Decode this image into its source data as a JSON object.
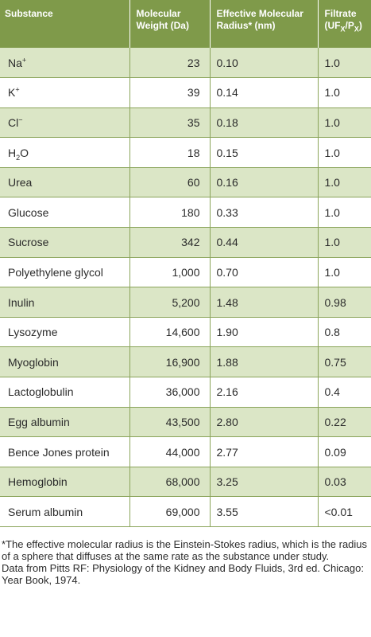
{
  "headers": {
    "substance": "Substance",
    "mw_line1": "Molecular",
    "mw_line2": "Weight (Da)",
    "radius_line1": "Effective Molecular",
    "radius_line2": "Radius* (nm)",
    "filtrate_line1": "Filtrate",
    "filtrate_line2": "(UF",
    "filtrate_sub1": "X",
    "filtrate_mid": "/P",
    "filtrate_sub2": "X",
    "filtrate_end": ")"
  },
  "rows": [
    {
      "name": "Na",
      "sup": "+",
      "sub": "",
      "tail": "",
      "mw": "23",
      "radius": "0.10",
      "filtrate": "1.0"
    },
    {
      "name": "K",
      "sup": "+",
      "sub": "",
      "tail": "",
      "mw": "39",
      "radius": "0.14",
      "filtrate": "1.0"
    },
    {
      "name": "Cl",
      "sup": "−",
      "sub": "",
      "tail": "",
      "mw": "35",
      "radius": "0.18",
      "filtrate": "1.0"
    },
    {
      "name": "H",
      "sup": "",
      "sub": "2",
      "tail": "O",
      "mw": "18",
      "radius": "0.15",
      "filtrate": "1.0"
    },
    {
      "name": "Urea",
      "sup": "",
      "sub": "",
      "tail": "",
      "mw": "60",
      "radius": "0.16",
      "filtrate": "1.0"
    },
    {
      "name": "Glucose",
      "sup": "",
      "sub": "",
      "tail": "",
      "mw": "180",
      "radius": "0.33",
      "filtrate": "1.0"
    },
    {
      "name": "Sucrose",
      "sup": "",
      "sub": "",
      "tail": "",
      "mw": "342",
      "radius": "0.44",
      "filtrate": "1.0"
    },
    {
      "name": "Polyethylene glycol",
      "sup": "",
      "sub": "",
      "tail": "",
      "mw": "1,000",
      "radius": "0.70",
      "filtrate": "1.0"
    },
    {
      "name": "Inulin",
      "sup": "",
      "sub": "",
      "tail": "",
      "mw": "5,200",
      "radius": "1.48",
      "filtrate": "0.98"
    },
    {
      "name": "Lysozyme",
      "sup": "",
      "sub": "",
      "tail": "",
      "mw": "14,600",
      "radius": "1.90",
      "filtrate": "0.8"
    },
    {
      "name": "Myoglobin",
      "sup": "",
      "sub": "",
      "tail": "",
      "mw": "16,900",
      "radius": "1.88",
      "filtrate": "0.75"
    },
    {
      "name": "Lactoglobulin",
      "sup": "",
      "sub": "",
      "tail": "",
      "mw": "36,000",
      "radius": "2.16",
      "filtrate": "0.4"
    },
    {
      "name": "Egg albumin",
      "sup": "",
      "sub": "",
      "tail": "",
      "mw": "43,500",
      "radius": "2.80",
      "filtrate": "0.22"
    },
    {
      "name": "Bence Jones protein",
      "sup": "",
      "sub": "",
      "tail": "",
      "mw": "44,000",
      "radius": "2.77",
      "filtrate": "0.09"
    },
    {
      "name": "Hemoglobin",
      "sup": "",
      "sub": "",
      "tail": "",
      "mw": "68,000",
      "radius": "3.25",
      "filtrate": "0.03"
    },
    {
      "name": "Serum albumin",
      "sup": "",
      "sub": "",
      "tail": "",
      "mw": "69,000",
      "radius": "3.55",
      "filtrate": "<0.01"
    }
  ],
  "footnote": "*The effective molecular radius is the Einstein-Stokes radius, which is the radius of a sphere that diffuses at the same rate as the substance under study.",
  "source": "Data from Pitts RF: Physiology of the Kidney and Body Fluids, 3rd ed. Chicago: Year Book, 1974.",
  "colors": {
    "header_bg": "#7f9a4a",
    "row_alt_bg": "#dbe6c6",
    "row_bg": "#ffffff",
    "border": "#8aa45a"
  }
}
